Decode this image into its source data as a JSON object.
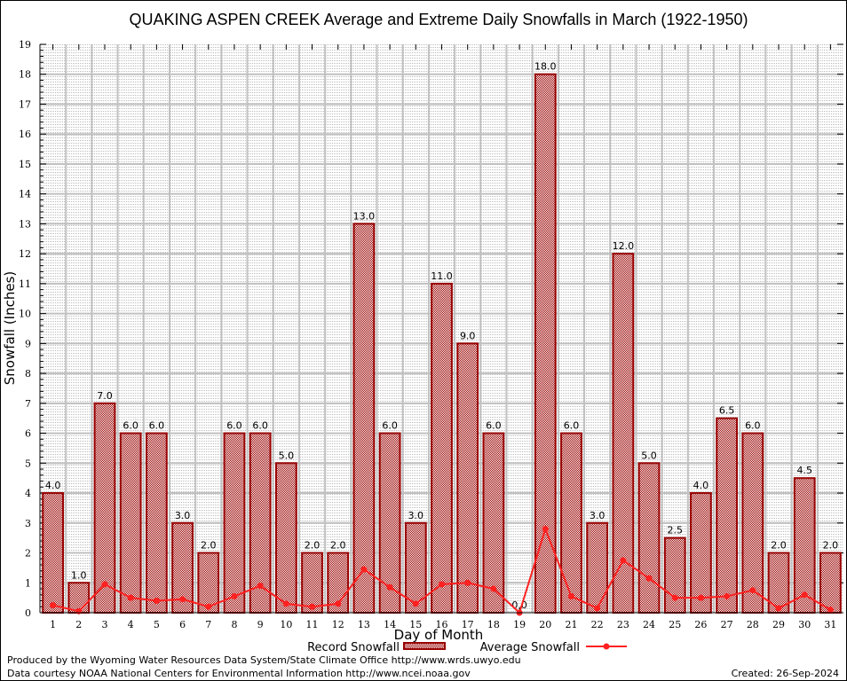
{
  "chart_data": {
    "type": "bar",
    "title": "QUAKING ASPEN CREEK Average and Extreme Daily Snowfalls in March (1922-1950)",
    "xlabel": "Day of Month",
    "ylabel": "Snowfall (Inches)",
    "ylim": [
      0,
      19
    ],
    "yticks": [
      0,
      1,
      2,
      3,
      4,
      5,
      6,
      7,
      8,
      9,
      10,
      11,
      12,
      13,
      14,
      15,
      16,
      17,
      18,
      19
    ],
    "grid": true,
    "legend_position": "bottom-center",
    "categories": [
      "1",
      "2",
      "3",
      "4",
      "5",
      "6",
      "7",
      "8",
      "9",
      "10",
      "11",
      "12",
      "13",
      "14",
      "15",
      "16",
      "17",
      "18",
      "19",
      "20",
      "21",
      "22",
      "23",
      "24",
      "25",
      "26",
      "27",
      "28",
      "29",
      "30",
      "31"
    ],
    "series": [
      {
        "name": "Record Snowfall",
        "type": "bar",
        "color": "#990000",
        "values": [
          4.0,
          1.0,
          7.0,
          6.0,
          6.0,
          3.0,
          2.0,
          6.0,
          6.0,
          5.0,
          2.0,
          2.0,
          13.0,
          6.0,
          3.0,
          11.0,
          9.0,
          6.0,
          0.0,
          18.0,
          6.0,
          3.0,
          12.0,
          5.0,
          2.5,
          4.0,
          6.5,
          6.0,
          2.0,
          4.5,
          2.0
        ],
        "labels": [
          "4.0",
          "1.0",
          "7.0",
          "6.0",
          "6.0",
          "3.0",
          "2.0",
          "6.0",
          "6.0",
          "5.0",
          "2.0",
          "2.0",
          "13.0",
          "6.0",
          "3.0",
          "11.0",
          "9.0",
          "6.0",
          "0.0",
          "18.0",
          "6.0",
          "3.0",
          "12.0",
          "5.0",
          "2.5",
          "4.0",
          "6.5",
          "6.0",
          "2.0",
          "4.5",
          "2.0"
        ]
      },
      {
        "name": "Average Snowfall",
        "type": "line",
        "color": "#ff2020",
        "values": [
          0.25,
          0.05,
          0.95,
          0.5,
          0.4,
          0.45,
          0.2,
          0.55,
          0.9,
          0.3,
          0.2,
          0.3,
          1.45,
          0.85,
          0.3,
          0.95,
          1.0,
          0.8,
          0.0,
          2.8,
          0.55,
          0.15,
          1.75,
          1.15,
          0.5,
          0.5,
          0.55,
          0.75,
          0.15,
          0.6,
          0.1
        ]
      }
    ]
  },
  "footer": {
    "line1": "Produced by the Wyoming Water Resources Data System/State Climate Office http://www.wrds.uwyo.edu",
    "line2": "Data courtesy NOAA National Centers for Environmental Information http://www.ncei.noaa.gov",
    "created": "Created: 26-Sep-2024"
  }
}
